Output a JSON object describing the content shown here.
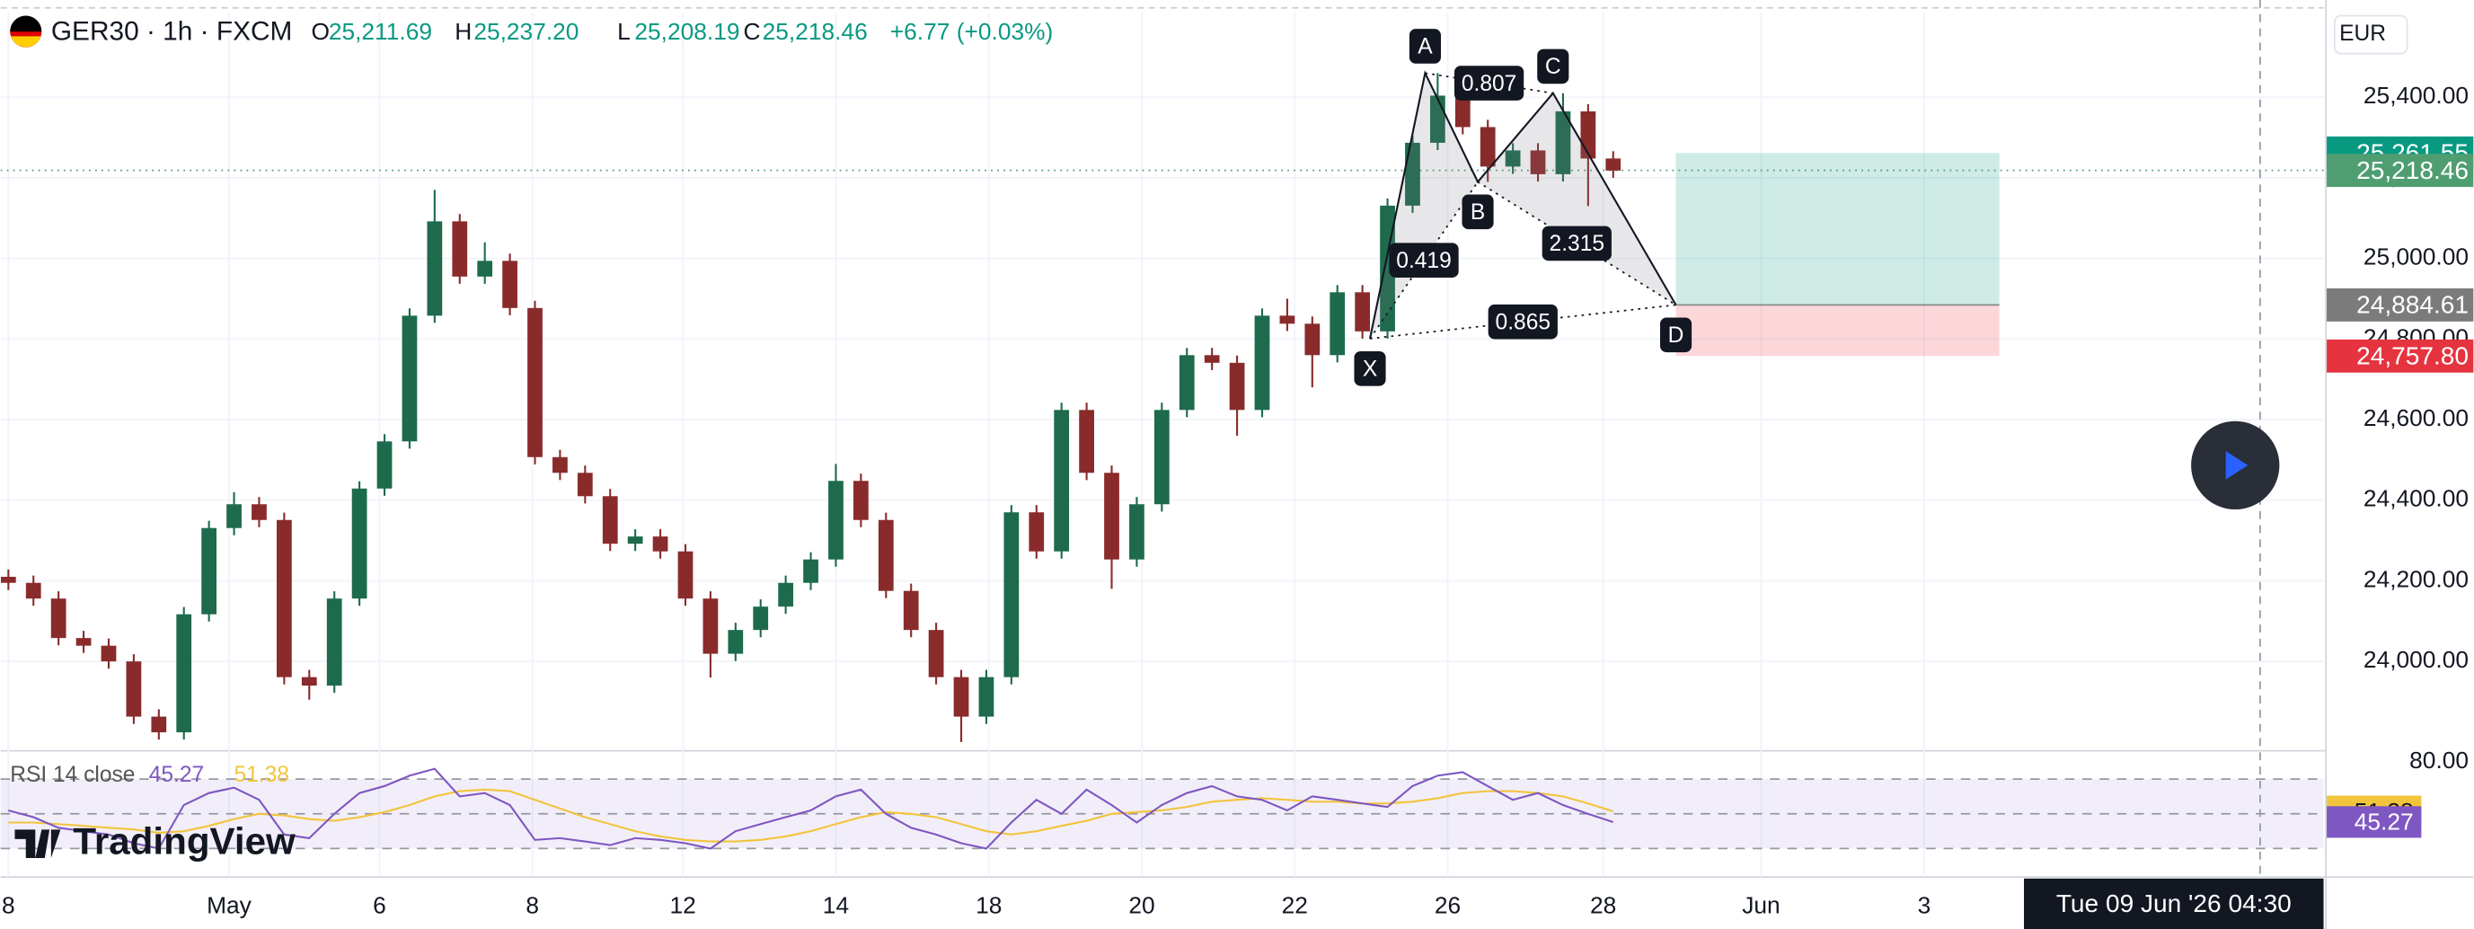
{
  "header": {
    "symbol": "GER30 · 1h · FXCM",
    "ohlc": [
      {
        "key": "O",
        "value": "25,211.69"
      },
      {
        "key": "H",
        "value": "25,237.20"
      },
      {
        "key": "L",
        "value": "25,208.19"
      },
      {
        "key": "C",
        "value": "25,218.46"
      }
    ],
    "change": "+6.77 (+0.03%)"
  },
  "ui": {
    "currency": "EUR",
    "crosshair_time": "Tue 09 Jun '26  04:30",
    "logo": "TradingView"
  },
  "chart_data": [
    {
      "type": "candlestick",
      "up_color": "#1d6b4c",
      "down_color": "#8a2b2b",
      "grid": true,
      "open": [
        24210,
        24195,
        24156,
        24058,
        24039,
        24000,
        23863,
        23824,
        24117,
        24331,
        24390,
        24351,
        23961,
        23940,
        24156,
        24429,
        24546,
        24858,
        25092,
        24955,
        24994,
        24877,
        24507,
        24468,
        24410,
        24292,
        24310,
        24273,
        24156,
        24019,
        24078,
        24136,
        24195,
        24253,
        24448,
        24351,
        24175,
        24078,
        23961,
        23863,
        23961,
        24370,
        24273,
        24624,
        24468,
        24253,
        24390,
        24624,
        24760,
        24741,
        24624,
        24858,
        24838,
        24760,
        24916,
        24819,
        25131,
        25287,
        25404,
        25326,
        25228,
        25268,
        25209,
        25365,
        25248
      ],
      "high": [
        24228,
        24213,
        24174,
        24076,
        24057,
        24018,
        23881,
        24135,
        24349,
        24420,
        24408,
        24369,
        23979,
        24174,
        24447,
        24564,
        24876,
        25170,
        25110,
        25040,
        25012,
        24895,
        24525,
        24486,
        24428,
        24328,
        24328,
        24291,
        24174,
        24096,
        24154,
        24213,
        24271,
        24490,
        24466,
        24369,
        24193,
        24096,
        23979,
        23979,
        24388,
        24388,
        24642,
        24642,
        24486,
        24408,
        24642,
        24778,
        24778,
        24759,
        24876,
        24900,
        24856,
        24934,
        24934,
        25149,
        25305,
        25460,
        25422,
        25344,
        25286,
        25286,
        25410,
        25383,
        25266
      ],
      "low": [
        24177,
        24138,
        24040,
        24021,
        23982,
        23845,
        23806,
        23806,
        24099,
        24313,
        24333,
        23943,
        23905,
        23922,
        24138,
        24411,
        24528,
        24840,
        24937,
        24937,
        24859,
        24489,
        24450,
        24392,
        24274,
        24274,
        24255,
        24138,
        23960,
        24001,
        24060,
        24118,
        24177,
        24235,
        24333,
        24157,
        24060,
        23943,
        23800,
        23845,
        23943,
        24255,
        24255,
        24450,
        24180,
        24235,
        24372,
        24606,
        24723,
        24560,
        24606,
        24820,
        24680,
        24742,
        24801,
        24801,
        25113,
        25269,
        25308,
        25190,
        25210,
        25191,
        25191,
        25130,
        25200
      ],
      "close": [
        24195,
        24156,
        24058,
        24039,
        24000,
        23863,
        23824,
        24117,
        24331,
        24390,
        24351,
        23961,
        23940,
        24156,
        24429,
        24546,
        24858,
        25092,
        24955,
        24994,
        24877,
        24507,
        24468,
        24410,
        24292,
        24310,
        24273,
        24156,
        24019,
        24078,
        24136,
        24195,
        24253,
        24448,
        24351,
        24175,
        24078,
        23961,
        23863,
        23961,
        24370,
        24273,
        24624,
        24468,
        24253,
        24390,
        24624,
        24760,
        24741,
        24624,
        24858,
        24838,
        24760,
        24916,
        24819,
        25131,
        25287,
        25404,
        25326,
        25228,
        25268,
        25209,
        25365,
        25248,
        25218
      ],
      "xlim": [
        -0.31,
        92.33
      ],
      "xticks": [
        {
          "value": 0,
          "label": "8"
        },
        {
          "value": 8.8,
          "label": "May"
        },
        {
          "value": 14.8,
          "label": "6"
        },
        {
          "value": 20.9,
          "label": "8"
        },
        {
          "value": 26.9,
          "label": "12"
        },
        {
          "value": 33.0,
          "label": "14"
        },
        {
          "value": 39.1,
          "label": "18"
        },
        {
          "value": 45.2,
          "label": "20"
        },
        {
          "value": 51.3,
          "label": "22"
        },
        {
          "value": 57.4,
          "label": "26"
        },
        {
          "value": 63.6,
          "label": "28"
        },
        {
          "value": 69.9,
          "label": "Jun"
        },
        {
          "value": 76.4,
          "label": "3"
        }
      ],
      "ylim": [
        23790,
        25610
      ],
      "yticks": [
        {
          "value": 24000,
          "label": "24,000.00"
        },
        {
          "value": 24200,
          "label": "24,200.00"
        },
        {
          "value": 24400,
          "label": "24,400.00"
        },
        {
          "value": 24600,
          "label": "24,600.00"
        },
        {
          "value": 24800,
          "label": "24,800.00"
        },
        {
          "value": 25000,
          "label": "25,000.00"
        },
        {
          "value": 25200,
          "label": "25,200.00"
        },
        {
          "value": 25400,
          "label": "25,400.00"
        }
      ],
      "price_labels": [
        {
          "value": 25261.55,
          "label": "25,261.55",
          "color": "#089981"
        },
        {
          "value": 25218.46,
          "label": "25,218.46",
          "color": "#4f9e72"
        },
        {
          "value": 24884.61,
          "label": "24,884.61",
          "color": "#7b7b7b"
        },
        {
          "value": 24757.8,
          "label": "24,757.80",
          "color": "#e5343f"
        }
      ],
      "pattern": [
        {
          "label": "X",
          "x": 54.3,
          "price": 24801
        },
        {
          "label": "A",
          "x": 56.5,
          "price": 25460
        },
        {
          "label": "B",
          "x": 58.6,
          "price": 25190
        },
        {
          "label": "C",
          "x": 61.6,
          "price": 25410
        },
        {
          "label": "D",
          "x": 66.5,
          "price": 24884.61
        }
      ],
      "ratios": [
        0.419,
        0.807,
        2.315,
        0.865
      ],
      "position": {
        "start": 66.5,
        "end": 79.4,
        "entry": 24884.61,
        "target": 25261.55,
        "stop": 24757.8
      },
      "crosshair_x": 89.8
    },
    {
      "type": "line",
      "title": "RSI 14 close",
      "series": [
        {
          "name": "RSI",
          "color": "#7e57c2",
          "values": [
            52,
            48,
            42,
            40,
            38,
            33,
            30,
            55,
            62,
            65,
            58,
            38,
            36,
            50,
            62,
            66,
            72,
            76,
            60,
            62,
            55,
            35,
            36,
            34,
            32,
            36,
            35,
            33,
            30,
            40,
            44,
            48,
            52,
            60,
            64,
            50,
            42,
            38,
            33,
            30,
            45,
            58,
            50,
            64,
            55,
            45,
            55,
            62,
            66,
            60,
            58,
            52,
            60,
            58,
            56,
            54,
            66,
            72,
            74,
            66,
            58,
            62,
            55,
            50,
            45.27
          ]
        },
        {
          "name": "RSI MA",
          "color": "#f2c43d",
          "values": [
            45,
            45,
            44,
            43,
            42,
            41,
            39,
            40,
            43,
            47,
            50,
            49,
            47,
            46,
            48,
            51,
            55,
            60,
            63,
            64,
            63,
            58,
            53,
            48,
            44,
            40,
            37,
            35,
            34,
            34,
            35,
            37,
            40,
            44,
            48,
            51,
            50,
            48,
            44,
            40,
            38,
            40,
            43,
            46,
            50,
            51,
            52,
            54,
            57,
            58,
            59,
            58,
            57,
            57,
            56,
            56,
            57,
            59,
            62,
            63,
            63,
            62,
            60,
            56,
            51.38
          ]
        }
      ],
      "ylim": [
        14.5,
        84.5
      ],
      "yticks": [
        {
          "value": 80,
          "label": "80.00"
        }
      ],
      "levels": [
        70,
        50,
        30
      ]
    }
  ]
}
